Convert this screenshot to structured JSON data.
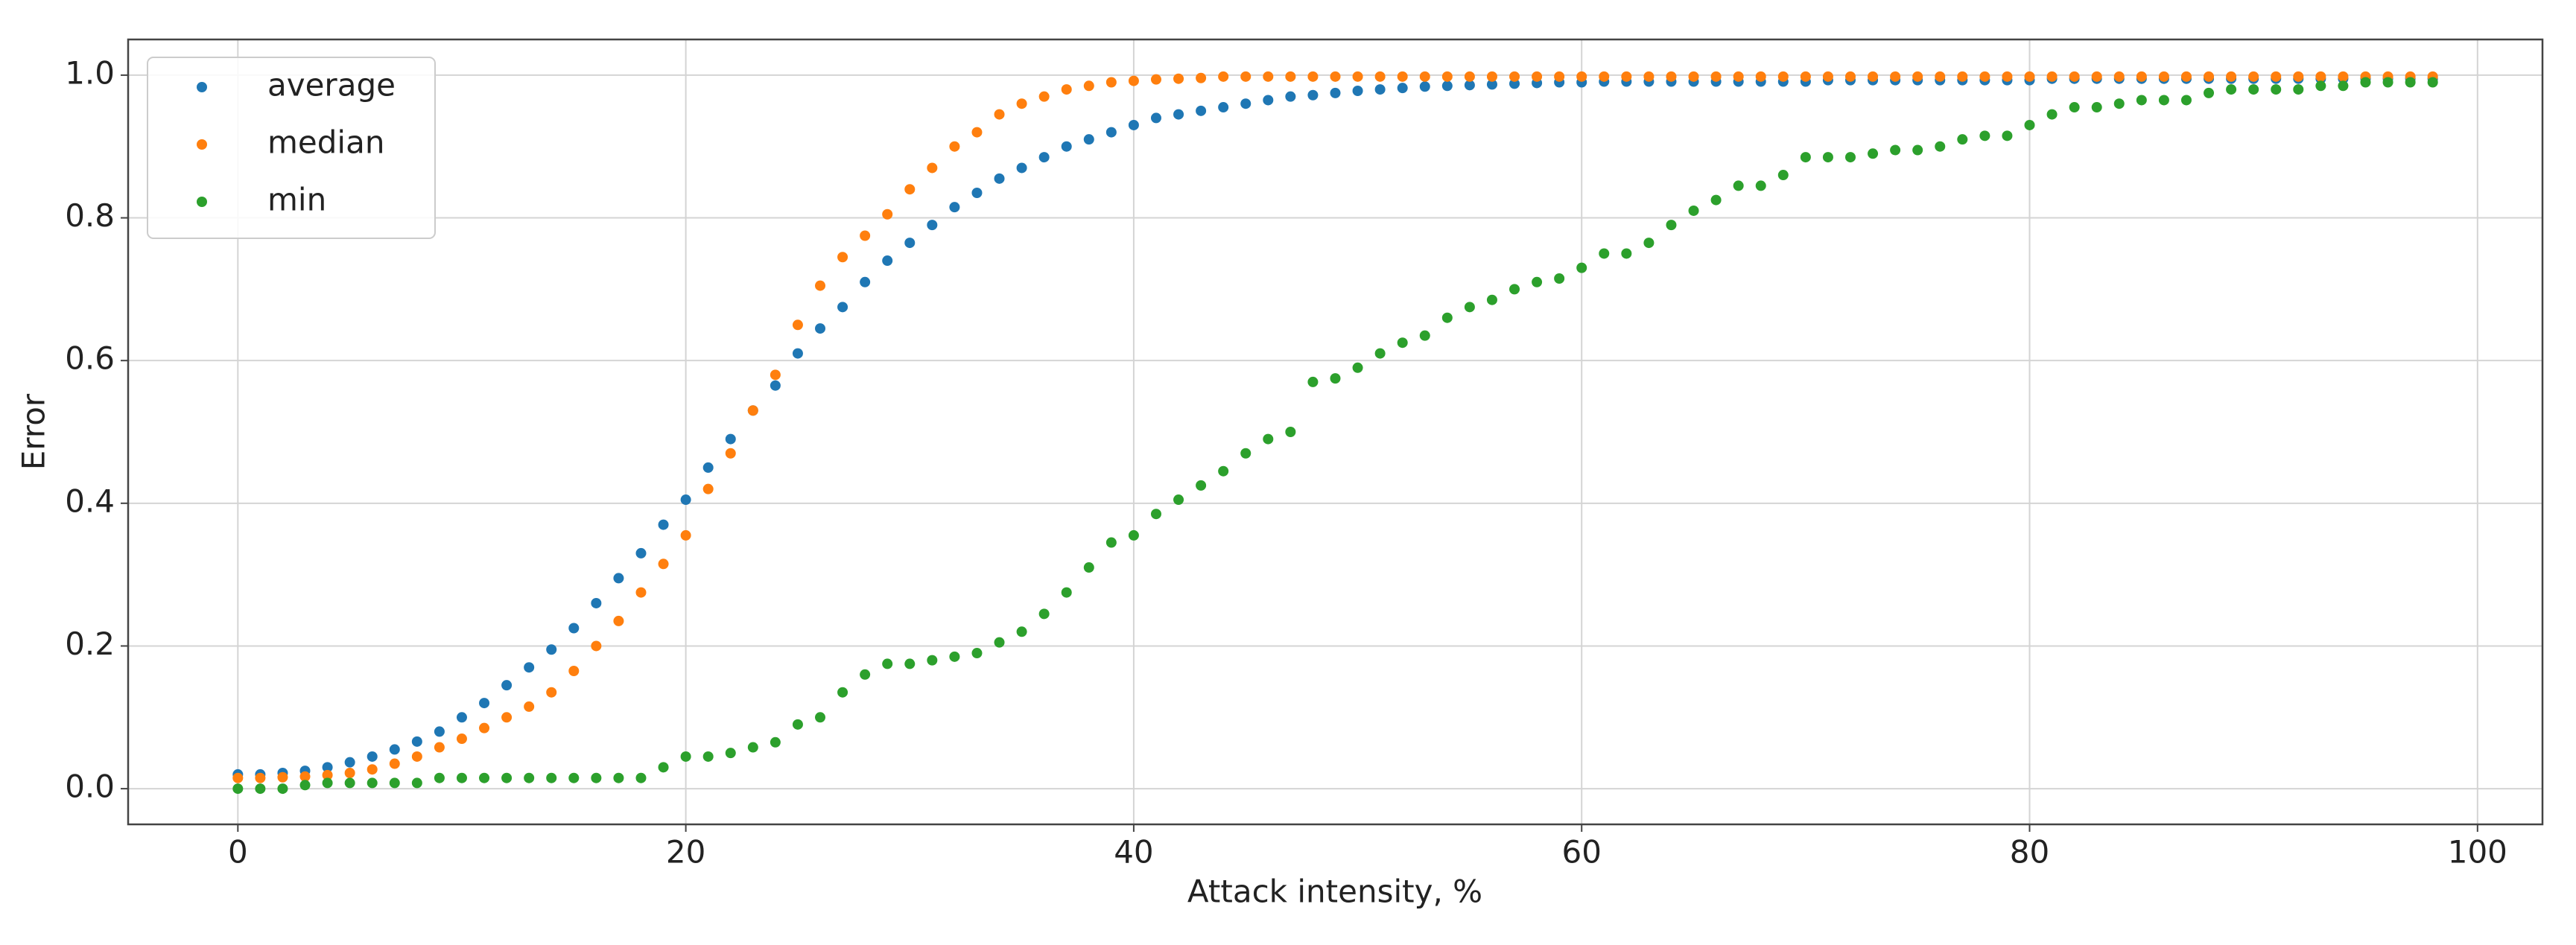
{
  "chart_data": {
    "type": "scatter",
    "x_label": "Attack intensity, %",
    "y_label": "Error",
    "x": [
      0,
      1,
      2,
      3,
      4,
      5,
      6,
      7,
      8,
      9,
      10,
      11,
      12,
      13,
      14,
      15,
      16,
      17,
      18,
      19,
      20,
      21,
      22,
      23,
      24,
      25,
      26,
      27,
      28,
      29,
      30,
      31,
      32,
      33,
      34,
      35,
      36,
      37,
      38,
      39,
      40,
      41,
      42,
      43,
      44,
      45,
      46,
      47,
      48,
      49,
      50,
      51,
      52,
      53,
      54,
      55,
      56,
      57,
      58,
      59,
      60,
      61,
      62,
      63,
      64,
      65,
      66,
      67,
      68,
      69,
      70,
      71,
      72,
      73,
      74,
      75,
      76,
      77,
      78,
      79,
      80,
      81,
      82,
      83,
      84,
      85,
      86,
      87,
      88,
      89,
      90,
      91,
      92,
      93,
      94,
      95,
      96,
      97,
      98
    ],
    "series": [
      {
        "name": "average",
        "color": "#1f77b4",
        "values": [
          0.02,
          0.02,
          0.022,
          0.025,
          0.03,
          0.037,
          0.045,
          0.055,
          0.066,
          0.08,
          0.1,
          0.12,
          0.145,
          0.17,
          0.195,
          0.225,
          0.26,
          0.295,
          0.33,
          0.37,
          0.405,
          0.45,
          0.49,
          0.53,
          0.565,
          0.61,
          0.645,
          0.675,
          0.71,
          0.74,
          0.765,
          0.79,
          0.815,
          0.835,
          0.855,
          0.87,
          0.885,
          0.9,
          0.91,
          0.92,
          0.93,
          0.94,
          0.945,
          0.95,
          0.955,
          0.96,
          0.965,
          0.97,
          0.972,
          0.975,
          0.978,
          0.98,
          0.982,
          0.984,
          0.985,
          0.986,
          0.987,
          0.988,
          0.989,
          0.99,
          0.99,
          0.991,
          0.991,
          0.991,
          0.991,
          0.991,
          0.991,
          0.991,
          0.991,
          0.991,
          0.991,
          0.993,
          0.993,
          0.993,
          0.993,
          0.993,
          0.993,
          0.993,
          0.993,
          0.993,
          0.993,
          0.995,
          0.995,
          0.995,
          0.995,
          0.995,
          0.995,
          0.995,
          0.995,
          0.995,
          0.995,
          0.995,
          0.995,
          0.995,
          0.995,
          0.995,
          0.995,
          0.995,
          0.995
        ]
      },
      {
        "name": "median",
        "color": "#ff7f0e",
        "values": [
          0.015,
          0.015,
          0.016,
          0.017,
          0.019,
          0.022,
          0.027,
          0.035,
          0.045,
          0.058,
          0.07,
          0.085,
          0.1,
          0.115,
          0.135,
          0.165,
          0.2,
          0.235,
          0.275,
          0.315,
          0.355,
          0.42,
          0.47,
          0.53,
          0.58,
          0.65,
          0.705,
          0.745,
          0.775,
          0.805,
          0.84,
          0.87,
          0.9,
          0.92,
          0.945,
          0.96,
          0.97,
          0.98,
          0.985,
          0.99,
          0.992,
          0.994,
          0.995,
          0.996,
          0.998,
          0.998,
          0.998,
          0.998,
          0.998,
          0.998,
          0.998,
          0.998,
          0.998,
          0.998,
          0.998,
          0.998,
          0.998,
          0.998,
          0.998,
          0.998,
          0.998,
          0.998,
          0.998,
          0.998,
          0.998,
          0.998,
          0.998,
          0.998,
          0.998,
          0.998,
          0.998,
          0.998,
          0.998,
          0.998,
          0.998,
          0.998,
          0.998,
          0.998,
          0.998,
          0.998,
          0.998,
          0.998,
          0.998,
          0.998,
          0.998,
          0.998,
          0.998,
          0.998,
          0.998,
          0.998,
          0.998,
          0.998,
          0.998,
          0.998,
          0.998,
          0.998,
          0.998,
          0.998,
          0.998
        ]
      },
      {
        "name": "min",
        "color": "#2ca02c",
        "values": [
          0,
          0,
          0,
          0.005,
          0.008,
          0.008,
          0.008,
          0.008,
          0.008,
          0.015,
          0.015,
          0.015,
          0.015,
          0.015,
          0.015,
          0.015,
          0.015,
          0.015,
          0.015,
          0.03,
          0.045,
          0.045,
          0.05,
          0.058,
          0.065,
          0.09,
          0.1,
          0.135,
          0.16,
          0.175,
          0.175,
          0.18,
          0.185,
          0.19,
          0.205,
          0.22,
          0.245,
          0.275,
          0.31,
          0.345,
          0.355,
          0.385,
          0.405,
          0.425,
          0.445,
          0.47,
          0.49,
          0.5,
          0.57,
          0.575,
          0.59,
          0.61,
          0.625,
          0.635,
          0.66,
          0.675,
          0.685,
          0.7,
          0.71,
          0.715,
          0.73,
          0.75,
          0.75,
          0.765,
          0.79,
          0.81,
          0.825,
          0.845,
          0.845,
          0.86,
          0.885,
          0.885,
          0.885,
          0.89,
          0.895,
          0.895,
          0.9,
          0.91,
          0.915,
          0.915,
          0.93,
          0.945,
          0.955,
          0.955,
          0.96,
          0.965,
          0.965,
          0.965,
          0.975,
          0.98,
          0.98,
          0.98,
          0.98,
          0.985,
          0.985,
          0.99,
          0.99,
          0.99,
          0.99
        ]
      }
    ],
    "xlim": [
      -4.9,
      102.9
    ],
    "ylim": [
      -0.05,
      1.05
    ],
    "xticks": [
      0,
      20,
      40,
      60,
      80,
      100
    ],
    "yticks": [
      {
        "value": 0,
        "label": "0.0"
      },
      0.2,
      0.4,
      0.6,
      0.8,
      {
        "value": 1,
        "label": "1.0"
      }
    ],
    "grid": true,
    "legend": "upper left"
  }
}
